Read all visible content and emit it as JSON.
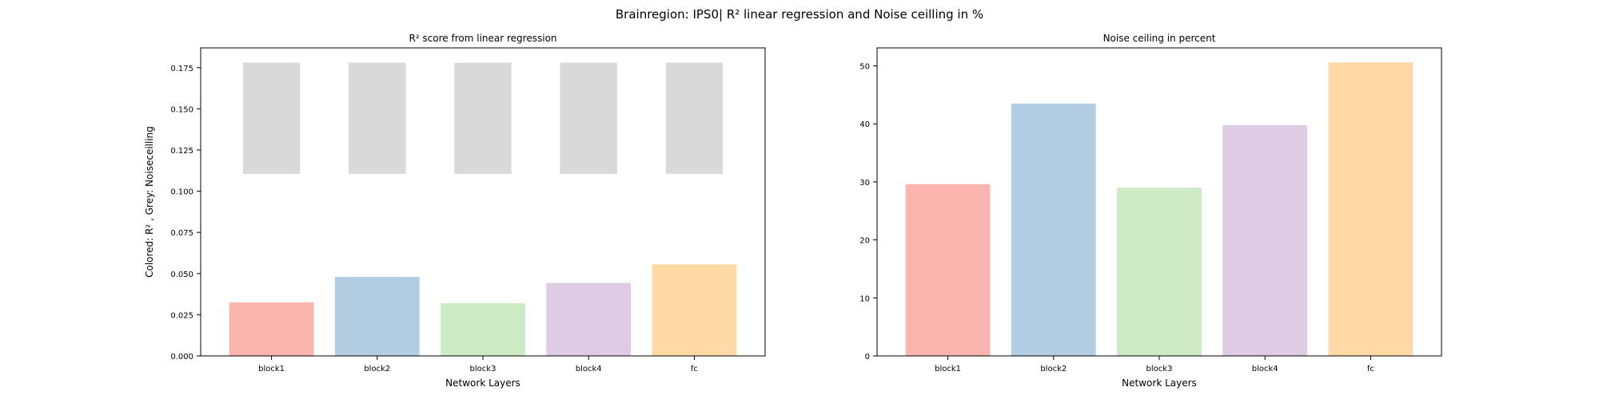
{
  "figure": {
    "suptitle": "Brainregion: IPS0| R² linear regression and Noise ceilling in %"
  },
  "chart_data": [
    {
      "type": "bar",
      "title": "R² score from linear regression",
      "xlabel": "Network Layers",
      "ylabel": "Colored: R² , Grey: Noiseceilling",
      "categories": [
        "block1",
        "block2",
        "block3",
        "block4",
        "fc"
      ],
      "series": [
        {
          "role": "r2",
          "values": [
            0.0325,
            0.048,
            0.032,
            0.0443,
            0.0556
          ]
        },
        {
          "role": "noise_ceiling",
          "bottom": [
            0.1105,
            0.1105,
            0.1105,
            0.1105,
            0.1105
          ],
          "top": [
            0.178,
            0.178,
            0.178,
            0.178,
            0.178
          ]
        }
      ],
      "ylim": [
        0,
        0.187
      ],
      "yticks": [
        0,
        0.025,
        0.05,
        0.075,
        0.1,
        0.125,
        0.15,
        0.175
      ],
      "ytick_labels": [
        "0.000",
        "0.025",
        "0.050",
        "0.075",
        "0.100",
        "0.125",
        "0.150",
        "0.175"
      ],
      "grid": false,
      "colors": [
        "#fbb4ae",
        "#b3cde3",
        "#ccebc5",
        "#decbe4",
        "#fed9a6"
      ],
      "noise_color": "#d9d9d9"
    },
    {
      "type": "bar",
      "title": "Noise ceiling in percent",
      "xlabel": "Network Layers",
      "ylabel": "",
      "categories": [
        "block1",
        "block2",
        "block3",
        "block4",
        "fc"
      ],
      "series": [
        {
          "values": [
            29.6,
            43.5,
            29.0,
            39.8,
            50.6
          ]
        }
      ],
      "ylim": [
        0,
        53.1
      ],
      "yticks": [
        0,
        10,
        20,
        30,
        40,
        50
      ],
      "ytick_labels": [
        "0",
        "10",
        "20",
        "30",
        "40",
        "50"
      ],
      "grid": false,
      "colors": [
        "#fbb4ae",
        "#b3cde3",
        "#ccebc5",
        "#decbe4",
        "#fed9a6"
      ]
    }
  ]
}
